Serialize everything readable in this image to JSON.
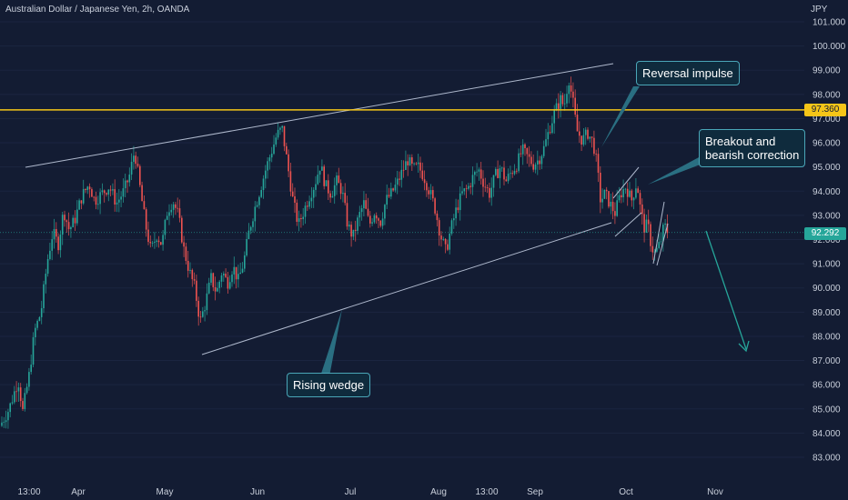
{
  "header": {
    "title": "Australian Dollar / Japanese Yen, 2h, OANDA",
    "unit": "JPY"
  },
  "chart_data": {
    "type": "candlestick",
    "symbol": "Australian Dollar / Japanese Yen, 2h, OANDA",
    "ylim": [
      82.6,
      101.4
    ],
    "y_ticks": [
      "83.000",
      "84.000",
      "85.000",
      "86.000",
      "87.000",
      "88.000",
      "89.000",
      "90.000",
      "91.000",
      "92.000",
      "93.000",
      "94.000",
      "95.000",
      "96.000",
      "97.000",
      "98.000",
      "99.000",
      "100.000",
      "101.000"
    ],
    "x_ticks": [
      "13:00",
      "Apr",
      "May",
      "Jun",
      "Jul",
      "Aug",
      "13:00",
      "Sep",
      "Oct",
      "Nov"
    ],
    "horizontal_level": {
      "value": 97.36,
      "label": "97.360",
      "color": "#f5c518"
    },
    "last_price": {
      "value": 92.292,
      "label": "92.292",
      "color": "#26a69a"
    },
    "price_path": [
      [
        0,
        84.3
      ],
      [
        10,
        85.0
      ],
      [
        20,
        86.2
      ],
      [
        25,
        84.9
      ],
      [
        32,
        86.4
      ],
      [
        38,
        88.2
      ],
      [
        45,
        89.0
      ],
      [
        52,
        91.1
      ],
      [
        58,
        92.3
      ],
      [
        64,
        91.8
      ],
      [
        70,
        93.2
      ],
      [
        76,
        92.4
      ],
      [
        82,
        92.8
      ],
      [
        90,
        93.8
      ],
      [
        98,
        94.3
      ],
      [
        104,
        93.6
      ],
      [
        112,
        93.9
      ],
      [
        120,
        94.2
      ],
      [
        128,
        93.5
      ],
      [
        136,
        94.0
      ],
      [
        142,
        94.6
      ],
      [
        148,
        95.7
      ],
      [
        154,
        94.1
      ],
      [
        160,
        92.6
      ],
      [
        166,
        91.5
      ],
      [
        172,
        92.2
      ],
      [
        178,
        91.8
      ],
      [
        184,
        93.2
      ],
      [
        190,
        93.6
      ],
      [
        196,
        93.0
      ],
      [
        202,
        91.6
      ],
      [
        208,
        90.7
      ],
      [
        214,
        90.0
      ],
      [
        220,
        88.6
      ],
      [
        226,
        89.4
      ],
      [
        232,
        90.4
      ],
      [
        238,
        89.8
      ],
      [
        244,
        90.7
      ],
      [
        250,
        90.2
      ],
      [
        256,
        90.9
      ],
      [
        262,
        90.3
      ],
      [
        268,
        91.1
      ],
      [
        274,
        92.4
      ],
      [
        280,
        93.3
      ],
      [
        286,
        94.1
      ],
      [
        292,
        94.9
      ],
      [
        298,
        95.6
      ],
      [
        304,
        96.3
      ],
      [
        310,
        96.6
      ],
      [
        316,
        95.1
      ],
      [
        322,
        93.6
      ],
      [
        328,
        92.6
      ],
      [
        334,
        93.2
      ],
      [
        340,
        93.8
      ],
      [
        346,
        94.3
      ],
      [
        352,
        95.1
      ],
      [
        358,
        94.2
      ],
      [
        364,
        93.9
      ],
      [
        370,
        94.4
      ],
      [
        376,
        94.0
      ],
      [
        382,
        92.6
      ],
      [
        388,
        92.1
      ],
      [
        394,
        92.9
      ],
      [
        400,
        93.5
      ],
      [
        406,
        92.6
      ],
      [
        412,
        93.2
      ],
      [
        418,
        92.7
      ],
      [
        424,
        93.6
      ],
      [
        430,
        93.9
      ],
      [
        436,
        94.3
      ],
      [
        442,
        94.8
      ],
      [
        448,
        95.3
      ],
      [
        454,
        94.9
      ],
      [
        460,
        95.0
      ],
      [
        466,
        94.6
      ],
      [
        472,
        94.0
      ],
      [
        478,
        93.3
      ],
      [
        484,
        92.2
      ],
      [
        490,
        91.5
      ],
      [
        496,
        92.5
      ],
      [
        502,
        93.3
      ],
      [
        508,
        93.9
      ],
      [
        514,
        94.1
      ],
      [
        520,
        94.6
      ],
      [
        526,
        94.9
      ],
      [
        532,
        94.3
      ],
      [
        538,
        93.9
      ],
      [
        544,
        94.6
      ],
      [
        550,
        95.0
      ],
      [
        556,
        94.4
      ],
      [
        562,
        94.8
      ],
      [
        568,
        95.1
      ],
      [
        574,
        95.7
      ],
      [
        580,
        95.4
      ],
      [
        586,
        95.1
      ],
      [
        592,
        95.3
      ],
      [
        598,
        95.8
      ],
      [
        604,
        96.6
      ],
      [
        610,
        97.3
      ],
      [
        616,
        97.8
      ],
      [
        620,
        97.5
      ],
      [
        625,
        98.7
      ],
      [
        630,
        97.6
      ],
      [
        634,
        96.5
      ],
      [
        640,
        96.1
      ],
      [
        646,
        96.4
      ],
      [
        652,
        96.0
      ],
      [
        656,
        95.1
      ],
      [
        660,
        93.6
      ],
      [
        665,
        93.9
      ],
      [
        670,
        93.5
      ],
      [
        676,
        93.1
      ],
      [
        682,
        93.9
      ],
      [
        688,
        94.2
      ],
      [
        694,
        93.6
      ],
      [
        700,
        94.4
      ],
      [
        704,
        93.2
      ],
      [
        708,
        92.5
      ],
      [
        712,
        92.6
      ],
      [
        716,
        91.7
      ],
      [
        720,
        91.4
      ],
      [
        726,
        91.9
      ],
      [
        730,
        92.6
      ],
      [
        734,
        92.3
      ]
    ]
  },
  "annotations": {
    "reversal": "Reversal impulse",
    "breakout": "Breakout and\nbearish correction",
    "wedge": "Rising wedge"
  }
}
